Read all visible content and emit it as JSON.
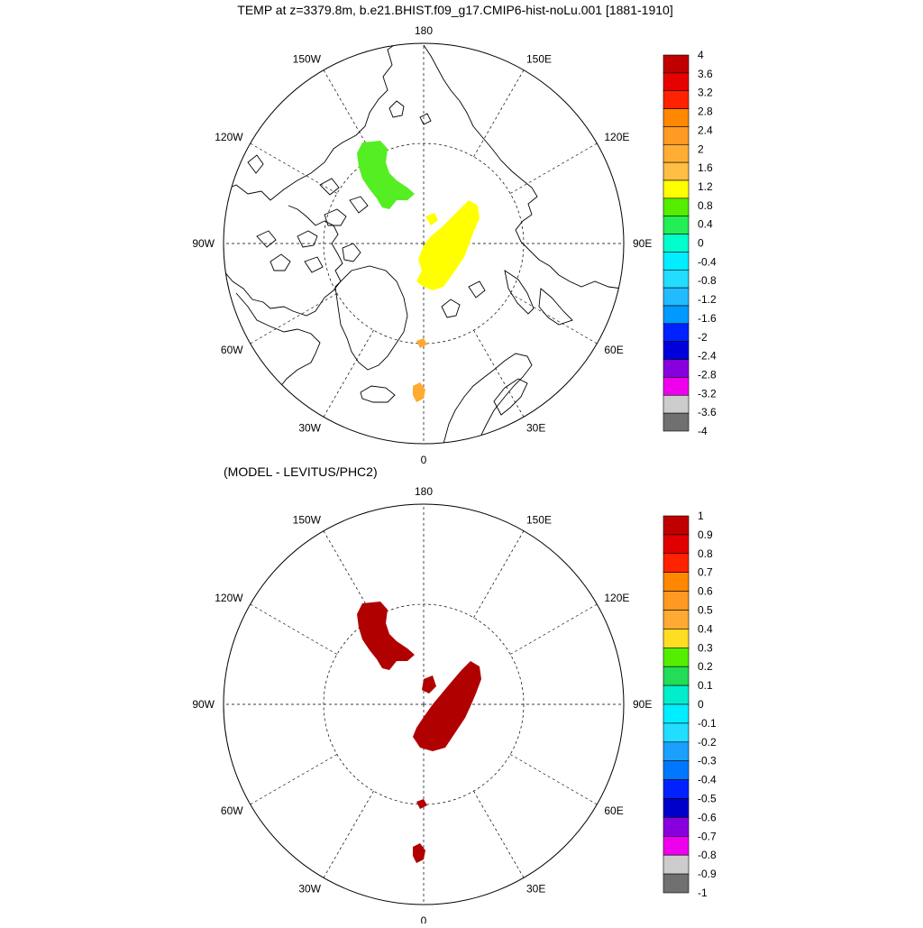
{
  "top": {
    "title": "TEMP at z=3379.8m, b.e21.BHIST.f09_g17.CMIP6-hist-noLu.001 [1881-1910]",
    "lon_labels": [
      "180",
      "150E",
      "120E",
      "90E",
      "60E",
      "30E",
      "0",
      "30W",
      "60W",
      "90W",
      "120W",
      "150W"
    ],
    "colorbar": {
      "labels": [
        "4",
        "3.6",
        "3.2",
        "2.8",
        "2.4",
        "2",
        "1.6",
        "1.2",
        "0.8",
        "0.4",
        "0",
        "-0.4",
        "-0.8",
        "-1.2",
        "-1.6",
        "-2",
        "-2.4",
        "-2.8",
        "-3.2",
        "-3.6",
        "-4"
      ],
      "colors": [
        "#c00000",
        "#e60000",
        "#ff2200",
        "#ff8800",
        "#ff9a22",
        "#ffae33",
        "#ffbe44",
        "#ffff00",
        "#55ee00",
        "#22ee55",
        "#00ffcc",
        "#00eeff",
        "#22ddff",
        "#22bbff",
        "#0099ff",
        "#0022ff",
        "#0000dd",
        "#8800dd",
        "#ee00ee",
        "#cccccc",
        "#707070"
      ]
    }
  },
  "bottom": {
    "title": "(MODEL - LEVITUS/PHC2)",
    "lon_labels": [
      "180",
      "150E",
      "120E",
      "90E",
      "60E",
      "30E",
      "0",
      "30W",
      "60W",
      "90W",
      "120W",
      "150W"
    ],
    "colorbar": {
      "labels": [
        "1",
        "0.9",
        "0.8",
        "0.7",
        "0.6",
        "0.5",
        "0.4",
        "0.3",
        "0.2",
        "0.1",
        "0",
        "-0.1",
        "-0.2",
        "-0.3",
        "-0.4",
        "-0.5",
        "-0.6",
        "-0.7",
        "-0.8",
        "-0.9",
        "-1"
      ],
      "colors": [
        "#c00000",
        "#e00000",
        "#ff2200",
        "#ff8800",
        "#ff9922",
        "#ffaa33",
        "#ffdd22",
        "#55ee00",
        "#22dd55",
        "#00eecc",
        "#00eeff",
        "#22ddff",
        "#1ca0ff",
        "#0077ff",
        "#0022ff",
        "#0000cc",
        "#8800dd",
        "#ee00ee",
        "#cccccc",
        "#707070"
      ]
    }
  },
  "colors": {
    "top_green": "#55ee22",
    "top_yellow": "#ffff00",
    "top_orange": "#ffaa33",
    "bottom_red": "#b00000"
  }
}
